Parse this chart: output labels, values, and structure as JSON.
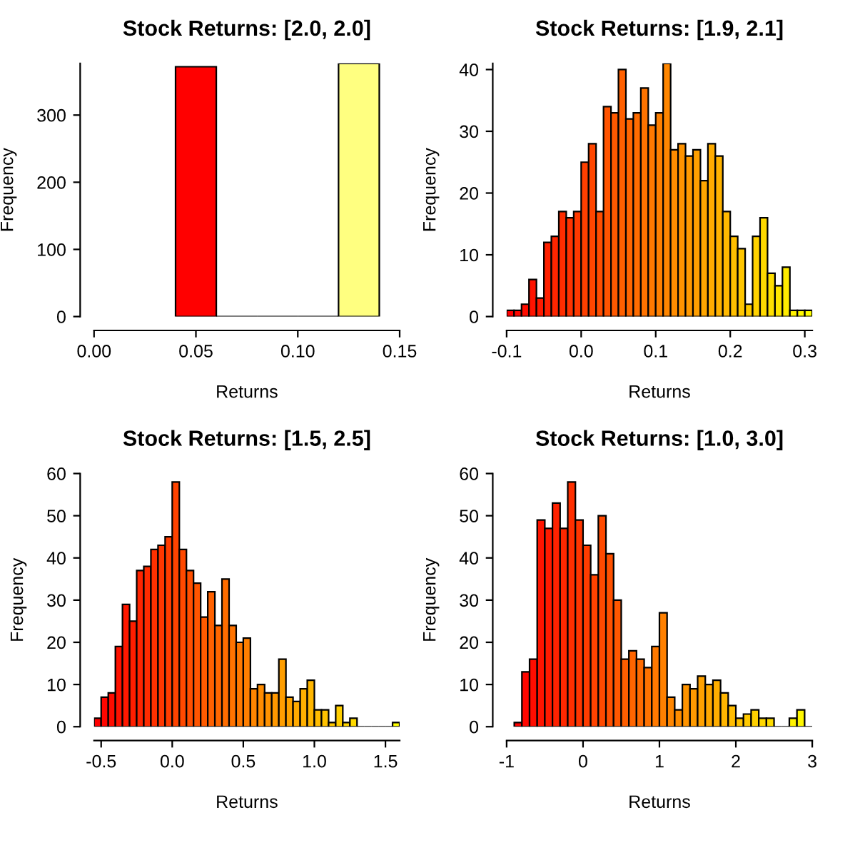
{
  "chart_data": [
    {
      "type": "histogram",
      "title": "Stock Returns: [2.0, 2.0]",
      "xlabel": "Returns",
      "ylabel": "Frequency",
      "bins": [
        0.04,
        0.06,
        0.08,
        0.1,
        0.12,
        0.14
      ],
      "values": [
        372,
        0,
        0,
        0,
        377
      ],
      "colors": [
        "#FF0000",
        null,
        null,
        null,
        "#FFFF80"
      ],
      "xlim": [
        0,
        0.15
      ],
      "xticks": [
        {
          "value": 0,
          "label": "0.00"
        },
        {
          "value": 0.05,
          "label": "0.05"
        },
        {
          "value": 0.1,
          "label": "0.10"
        },
        {
          "value": 0.15,
          "label": "0.15"
        }
      ],
      "ylim": [
        0,
        377
      ],
      "yticks": [
        0,
        100,
        200,
        300
      ],
      "grid": false
    },
    {
      "type": "histogram",
      "title": "Stock Returns: [1.9, 2.1]",
      "xlabel": "Returns",
      "ylabel": "Frequency",
      "bins": [
        -0.1,
        -0.09,
        -0.08,
        -0.07,
        -0.06,
        -0.05,
        -0.04,
        -0.03,
        -0.02,
        -0.01,
        0.0,
        0.01,
        0.02,
        0.03,
        0.04,
        0.05,
        0.06,
        0.07,
        0.08,
        0.09,
        0.1,
        0.11,
        0.12,
        0.13,
        0.14,
        0.15,
        0.16,
        0.17,
        0.18,
        0.19,
        0.2,
        0.21,
        0.22,
        0.23,
        0.24,
        0.25,
        0.26,
        0.27,
        0.28,
        0.29,
        0.3,
        0.31
      ],
      "values": [
        1,
        1,
        2,
        6,
        3,
        12,
        13,
        17,
        16,
        17,
        25,
        28,
        17,
        34,
        33,
        40,
        32,
        33,
        37,
        31,
        33,
        41,
        27,
        28,
        26,
        27,
        22,
        28,
        26,
        17,
        13,
        11,
        2,
        13,
        16,
        7,
        5,
        8,
        1,
        1,
        1
      ],
      "colors": [
        "#FF0000",
        "#FF0600",
        "#FF0D00",
        "#FF1300",
        "#FF1A00",
        "#FF2000",
        "#FF2600",
        "#FF2D00",
        "#FF3300",
        "#FF3900",
        "#FF4000",
        "#FF4600",
        "#FF4D00",
        "#FF5300",
        "#FF5900",
        "#FF6000",
        "#FF6600",
        "#FF6C00",
        "#FF7300",
        "#FF7900",
        "#FF8000",
        "#FF8600",
        "#FF8C00",
        "#FF9300",
        "#FF9900",
        "#FF9F00",
        "#FFA600",
        "#FFAC00",
        "#FFB300",
        "#FFB900",
        "#FFBF00",
        "#FFC600",
        "#FFCC00",
        "#FFD200",
        "#FFD900",
        "#FFDF00",
        "#FFE600",
        "#FFEC00",
        "#FFF200",
        "#FFF900",
        "#FFFF00"
      ],
      "xlim": [
        -0.1,
        0.31
      ],
      "xticks": [
        {
          "value": -0.1,
          "label": "-0.1"
        },
        {
          "value": 0,
          "label": "0.0"
        },
        0.1,
        0.2,
        0.3
      ],
      "ylim": [
        0,
        41
      ],
      "yticks": [
        0,
        10,
        20,
        30,
        40
      ],
      "grid": false
    },
    {
      "type": "histogram",
      "title": "Stock Returns: [1.5, 2.5]",
      "xlabel": "Returns",
      "ylabel": "Frequency",
      "bins": [
        -0.55,
        -0.5,
        -0.45,
        -0.4,
        -0.35,
        -0.3,
        -0.25,
        -0.2,
        -0.15,
        -0.1,
        -0.05,
        0.0,
        0.05,
        0.1,
        0.15,
        0.2,
        0.25,
        0.3,
        0.35,
        0.4,
        0.45,
        0.5,
        0.55,
        0.6,
        0.65,
        0.7,
        0.75,
        0.8,
        0.85,
        0.9,
        0.95,
        1.0,
        1.05,
        1.1,
        1.15,
        1.2,
        1.25,
        1.3,
        1.35,
        1.4,
        1.45,
        1.5,
        1.55,
        1.6
      ],
      "values": [
        2,
        7,
        8,
        19,
        29,
        25,
        37,
        38,
        42,
        43,
        45,
        58,
        42,
        37,
        34,
        26,
        32,
        24,
        35,
        24,
        20,
        21,
        9,
        10,
        8,
        8,
        16,
        7,
        6,
        9,
        11,
        4,
        4,
        1,
        5,
        1,
        2,
        0,
        0,
        0,
        0,
        0,
        1
      ],
      "colors": [
        "#FF0000",
        "#FF0600",
        "#FF0C00",
        "#FF1200",
        "#FF1800",
        "#FF1E00",
        "#FF2400",
        "#FF2B00",
        "#FF3100",
        "#FF3700",
        "#FF3D00",
        "#FF4300",
        "#FF4900",
        "#FF4F00",
        "#FF5500",
        "#FF5B00",
        "#FF6100",
        "#FF6700",
        "#FF6D00",
        "#FF7300",
        "#FF7900",
        "#FF7F00",
        "#FF8600",
        "#FF8C00",
        "#FF9200",
        "#FF9800",
        "#FF9E00",
        "#FFA400",
        "#FFAA00",
        "#FFB000",
        "#FFB600",
        "#FFBC00",
        "#FFC200",
        "#FFC800",
        "#FFCE00",
        "#FFD400",
        "#FFDA00",
        null,
        null,
        null,
        null,
        null,
        "#FFFF00"
      ],
      "xlim": [
        -0.55,
        1.6
      ],
      "xticks": [
        {
          "value": -0.5,
          "label": "-0.5"
        },
        {
          "value": 0,
          "label": "0.0"
        },
        0.5,
        {
          "value": 1,
          "label": "1.0"
        },
        1.5
      ],
      "ylim": [
        0,
        60
      ],
      "yticks": [
        0,
        10,
        20,
        30,
        40,
        50,
        60
      ],
      "grid": false
    },
    {
      "type": "histogram",
      "title": "Stock Returns: [1.0, 3.0]",
      "xlabel": "Returns",
      "ylabel": "Frequency",
      "bins": [
        -0.9,
        -0.8,
        -0.7,
        -0.6,
        -0.5,
        -0.4,
        -0.3,
        -0.2,
        -0.1,
        0.0,
        0.1,
        0.2,
        0.3,
        0.4,
        0.5,
        0.6,
        0.7,
        0.8,
        0.9,
        1.0,
        1.1,
        1.2,
        1.3,
        1.4,
        1.5,
        1.6,
        1.7,
        1.8,
        1.9,
        2.0,
        2.1,
        2.2,
        2.3,
        2.4,
        2.5,
        2.6,
        2.7,
        2.8,
        2.9,
        3.0
      ],
      "values": [
        1,
        13,
        16,
        49,
        47,
        53,
        47,
        58,
        49,
        43,
        36,
        50,
        41,
        30,
        16,
        18,
        16,
        14,
        19,
        27,
        7,
        4,
        10,
        9,
        12,
        10,
        11,
        8,
        5,
        2,
        3,
        4,
        2,
        2,
        0,
        0,
        2,
        4,
        0
      ],
      "colors": [
        "#FF0000",
        "#FF0700",
        "#FF0D00",
        "#FF1400",
        "#FF1B00",
        "#FF2200",
        "#FF2800",
        "#FF2F00",
        "#FF3600",
        "#FF3C00",
        "#FF4300",
        "#FF4A00",
        "#FF5100",
        "#FF5700",
        "#FF5E00",
        "#FF6500",
        "#FF6B00",
        "#FF7200",
        "#FF7900",
        "#FF8000",
        "#FF8600",
        "#FF8D00",
        "#FF9400",
        "#FF9A00",
        "#FFA100",
        "#FFA800",
        "#FFAE00",
        "#FFB500",
        "#FFBC00",
        "#FFC300",
        "#FFC900",
        "#FFD000",
        "#FFD700",
        "#FFDD00",
        null,
        null,
        "#FFF200",
        "#FFF800",
        null
      ],
      "xlim": [
        -1,
        3.0
      ],
      "xticks": [
        {
          "value": -1,
          "label": "-1"
        },
        0,
        1,
        2,
        3
      ],
      "ylim": [
        0,
        60
      ],
      "yticks": [
        0,
        10,
        20,
        30,
        40,
        50,
        60
      ],
      "grid": false
    }
  ]
}
